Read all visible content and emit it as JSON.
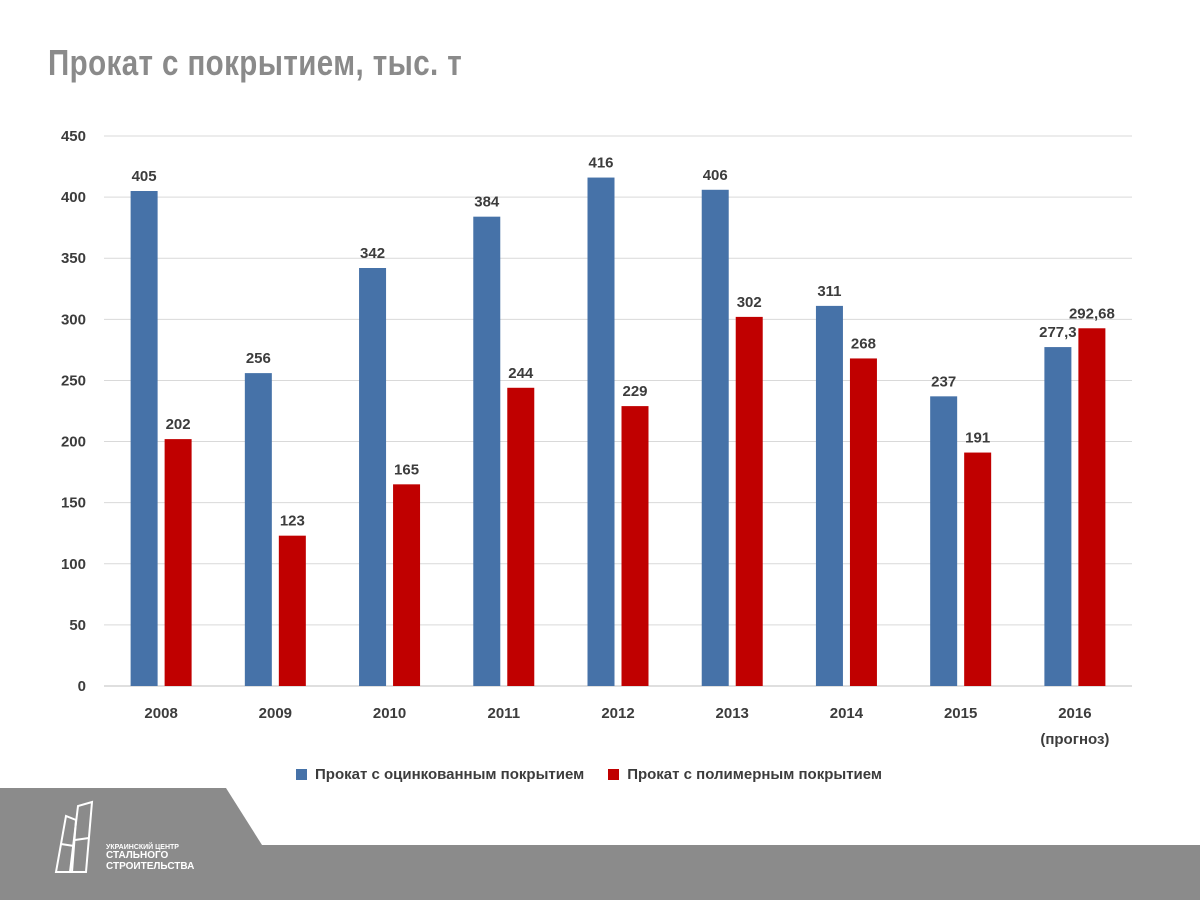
{
  "title": "Прокат с покрытием, тыс. т",
  "chart_data": {
    "type": "bar",
    "categories": [
      "2008",
      "2009",
      "2010",
      "2011",
      "2012",
      "2013",
      "2014",
      "2015",
      "2016"
    ],
    "category_sublabels": [
      "",
      "",
      "",
      "",
      "",
      "",
      "",
      "",
      "(прогноз)"
    ],
    "series": [
      {
        "name": "Прокат с оцинкованным покрытием",
        "color": "#4672A8",
        "values": [
          405,
          256,
          342,
          384,
          416,
          406,
          311,
          237,
          277.3
        ],
        "labels": [
          "405",
          "256",
          "342",
          "384",
          "416",
          "406",
          "311",
          "237",
          "277,3"
        ]
      },
      {
        "name": "Прокат с полимерным покрытием",
        "color": "#C00000",
        "values": [
          202,
          123,
          165,
          244,
          229,
          302,
          268,
          191,
          292.68
        ],
        "labels": [
          "202",
          "123",
          "165",
          "244",
          "229",
          "302",
          "268",
          "191",
          "292,68"
        ]
      }
    ],
    "ylim": [
      0,
      450
    ],
    "yticks": [
      "0",
      "50",
      "100",
      "150",
      "200",
      "250",
      "300",
      "350",
      "400",
      "450"
    ],
    "grid": true,
    "legend_position": "bottom"
  },
  "footer": {
    "logo_line1": "УКРАИНСКИЙ ЦЕНТР",
    "logo_line2": "СТАЛЬНОГО",
    "logo_line3": "СТРОИТЕЛЬСТВА"
  }
}
